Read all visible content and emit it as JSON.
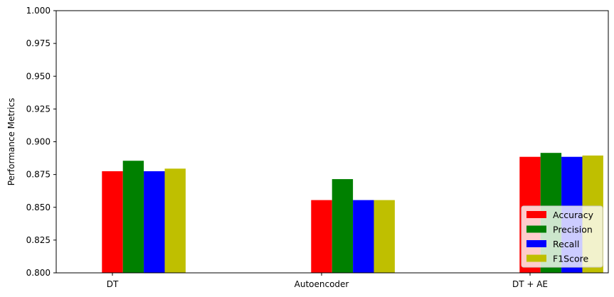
{
  "chart_data": {
    "type": "bar",
    "title": "",
    "xlabel": "",
    "ylabel": "Performance Metrics",
    "ylim": [
      0.8,
      1.0
    ],
    "yticks": [
      "0.800",
      "0.825",
      "0.850",
      "0.875",
      "0.900",
      "0.925",
      "0.950",
      "0.975",
      "1.000"
    ],
    "categories": [
      "DT",
      "Autoencoder",
      "DT + AE"
    ],
    "series": [
      {
        "name": "Accuracy",
        "color": "#ff0000",
        "values": [
          0.8775,
          0.8555,
          0.8885
        ]
      },
      {
        "name": "Precision",
        "color": "#008000",
        "values": [
          0.8855,
          0.8715,
          0.8915
        ]
      },
      {
        "name": "Recall",
        "color": "#0000ff",
        "values": [
          0.8775,
          0.8555,
          0.8885
        ]
      },
      {
        "name": "F1Score",
        "color": "#bfbf00",
        "values": [
          0.8795,
          0.8555,
          0.8895
        ]
      }
    ],
    "grid": false,
    "legend_position": "bottom-right"
  }
}
